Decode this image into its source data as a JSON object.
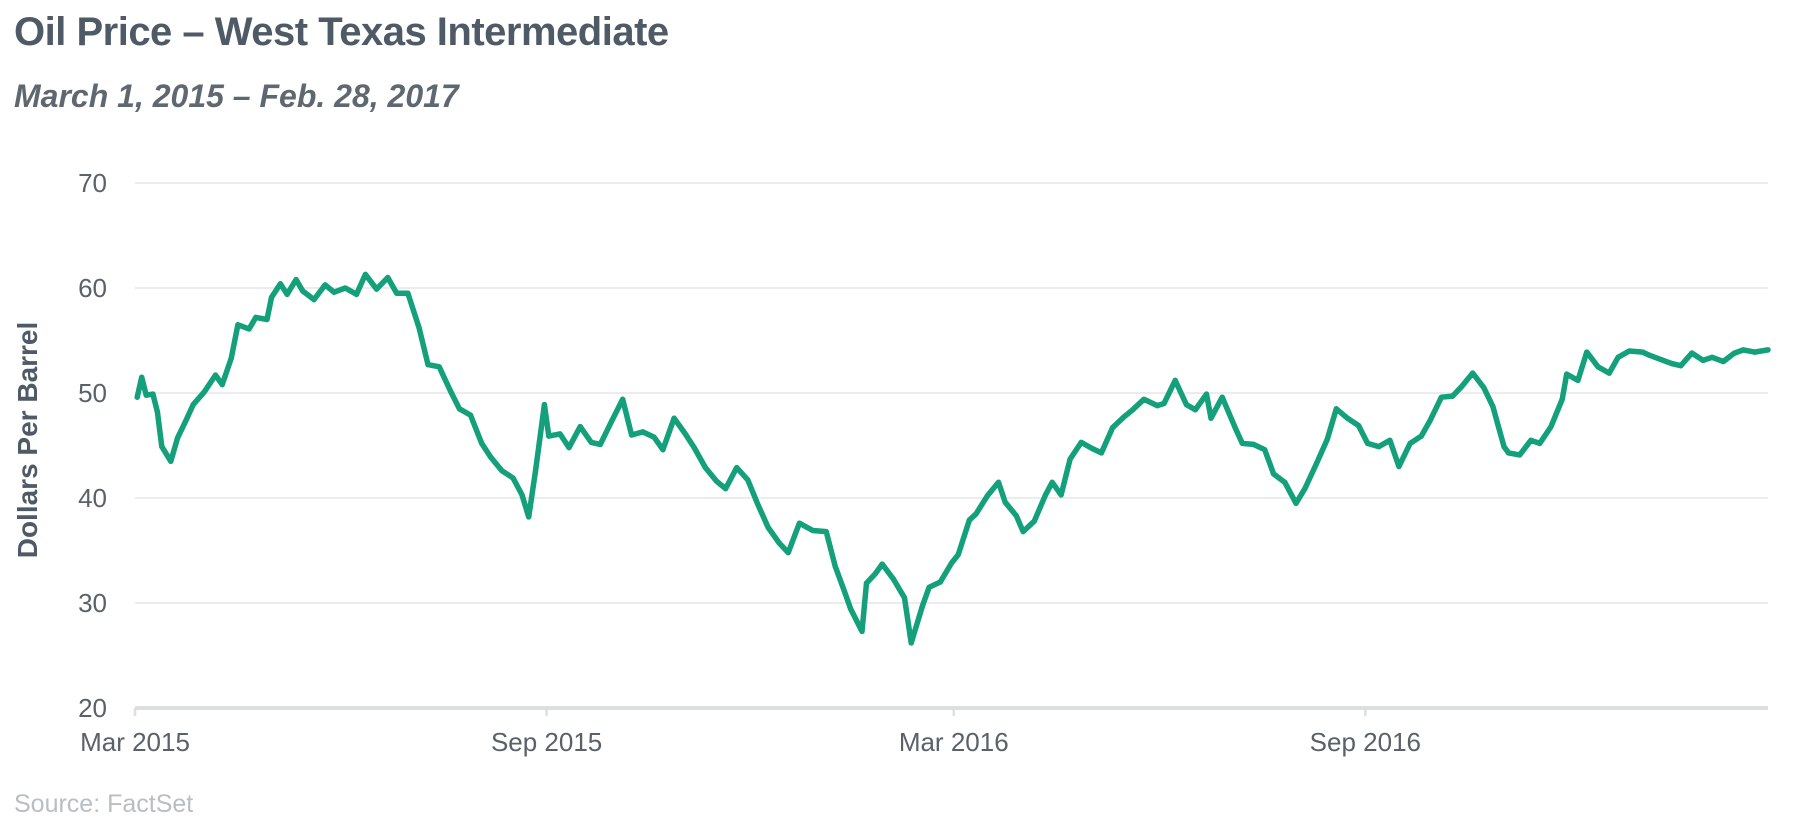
{
  "header": {
    "title": "Oil Price – West Texas Intermediate",
    "subtitle": "March 1, 2015 – Feb. 28, 2017"
  },
  "footer": {
    "source": "Source: FactSet"
  },
  "colors": {
    "line": "#13a07a",
    "grid": "#e3e5e7",
    "axis": "#dcdfe2",
    "text": "#5a6169",
    "title": "#4e5a65",
    "source": "#b9bec3"
  },
  "chart_data": {
    "type": "line",
    "title": "Oil Price – West Texas Intermediate",
    "subtitle": "March 1, 2015 – Feb. 28, 2017",
    "xlabel": "",
    "ylabel": "Dollars Per Barrel",
    "ylim": [
      20,
      70
    ],
    "xlim": [
      "2015-03-01",
      "2017-02-28"
    ],
    "yticks": [
      20,
      30,
      40,
      50,
      60,
      70
    ],
    "xticks": [
      {
        "date": "2015-03-01",
        "label": "Mar 2015"
      },
      {
        "date": "2015-09-01",
        "label": "Sep 2015"
      },
      {
        "date": "2016-03-01",
        "label": "Mar 2016"
      },
      {
        "date": "2016-09-01",
        "label": "Sep 2016"
      }
    ],
    "grid": true,
    "legend": "none",
    "series": [
      {
        "x": [
          "2015-03-02",
          "2015-03-04",
          "2015-03-06",
          "2015-03-09",
          "2015-03-11",
          "2015-03-13",
          "2015-03-17",
          "2015-03-20",
          "2015-03-24",
          "2015-03-27",
          "2015-04-01",
          "2015-04-06",
          "2015-04-09",
          "2015-04-13",
          "2015-04-16",
          "2015-04-21",
          "2015-04-24",
          "2015-04-29",
          "2015-05-01",
          "2015-05-05",
          "2015-05-08",
          "2015-05-12",
          "2015-05-15",
          "2015-05-20",
          "2015-05-25",
          "2015-05-29",
          "2015-06-03",
          "2015-06-08",
          "2015-06-12",
          "2015-06-17",
          "2015-06-22",
          "2015-06-26",
          "2015-07-01",
          "2015-07-06",
          "2015-07-10",
          "2015-07-15",
          "2015-07-20",
          "2015-07-24",
          "2015-07-29",
          "2015-08-03",
          "2015-08-07",
          "2015-08-12",
          "2015-08-17",
          "2015-08-21",
          "2015-08-24",
          "2015-08-27",
          "2015-08-31",
          "2015-09-02",
          "2015-09-07",
          "2015-09-11",
          "2015-09-16",
          "2015-09-21",
          "2015-09-25",
          "2015-09-30",
          "2015-10-05",
          "2015-10-09",
          "2015-10-14",
          "2015-10-19",
          "2015-10-23",
          "2015-10-28",
          "2015-11-02",
          "2015-11-06",
          "2015-11-11",
          "2015-11-16",
          "2015-11-20",
          "2015-11-25",
          "2015-11-30",
          "2015-12-04",
          "2015-12-09",
          "2015-12-14",
          "2015-12-18",
          "2015-12-23",
          "2015-12-29",
          "2016-01-04",
          "2016-01-08",
          "2016-01-12",
          "2016-01-15",
          "2016-01-20",
          "2016-01-22",
          "2016-01-26",
          "2016-01-29",
          "2016-02-03",
          "2016-02-08",
          "2016-02-11",
          "2016-02-16",
          "2016-02-19",
          "2016-02-24",
          "2016-02-29",
          "2016-03-03",
          "2016-03-08",
          "2016-03-11",
          "2016-03-16",
          "2016-03-21",
          "2016-03-24",
          "2016-03-29",
          "2016-04-01",
          "2016-04-06",
          "2016-04-11",
          "2016-04-14",
          "2016-04-18",
          "2016-04-22",
          "2016-04-27",
          "2016-05-02",
          "2016-05-06",
          "2016-05-11",
          "2016-05-16",
          "2016-05-20",
          "2016-05-25",
          "2016-05-31",
          "2016-06-03",
          "2016-06-08",
          "2016-06-13",
          "2016-06-17",
          "2016-06-22",
          "2016-06-24",
          "2016-06-29",
          "2016-07-05",
          "2016-07-08",
          "2016-07-13",
          "2016-07-18",
          "2016-07-22",
          "2016-07-27",
          "2016-08-01",
          "2016-08-05",
          "2016-08-10",
          "2016-08-15",
          "2016-08-19",
          "2016-08-24",
          "2016-08-29",
          "2016-09-02",
          "2016-09-07",
          "2016-09-12",
          "2016-09-16",
          "2016-09-21",
          "2016-09-26",
          "2016-09-30",
          "2016-10-05",
          "2016-10-10",
          "2016-10-14",
          "2016-10-19",
          "2016-10-24",
          "2016-10-28",
          "2016-11-02",
          "2016-11-04",
          "2016-11-09",
          "2016-11-14",
          "2016-11-18",
          "2016-11-23",
          "2016-11-28",
          "2016-11-30",
          "2016-12-05",
          "2016-12-09",
          "2016-12-14",
          "2016-12-19",
          "2016-12-23",
          "2016-12-28",
          "2017-01-03",
          "2017-01-06",
          "2017-01-11",
          "2017-01-16",
          "2017-01-20",
          "2017-01-25",
          "2017-01-30",
          "2017-02-03",
          "2017-02-08",
          "2017-02-13",
          "2017-02-17",
          "2017-02-22",
          "2017-02-28"
        ],
        "values": [
          49.6,
          51.5,
          49.8,
          49.9,
          48.2,
          44.9,
          43.5,
          45.7,
          47.5,
          48.9,
          50.1,
          51.7,
          50.8,
          53.3,
          56.5,
          56.1,
          57.2,
          57.0,
          59.1,
          60.4,
          59.4,
          60.8,
          59.7,
          58.9,
          60.3,
          59.6,
          60.0,
          59.4,
          61.3,
          59.9,
          61.0,
          59.5,
          59.5,
          56.2,
          52.7,
          52.5,
          50.2,
          48.5,
          47.9,
          45.2,
          43.9,
          42.6,
          41.9,
          40.3,
          38.2,
          42.5,
          48.9,
          45.9,
          46.1,
          44.8,
          46.8,
          45.3,
          45.1,
          47.3,
          49.4,
          46.0,
          46.3,
          45.8,
          44.6,
          47.6,
          46.1,
          44.8,
          42.9,
          41.6,
          40.9,
          42.9,
          41.7,
          39.6,
          37.2,
          35.7,
          34.8,
          37.6,
          36.9,
          36.8,
          33.5,
          31.2,
          29.4,
          27.3,
          31.9,
          32.8,
          33.7,
          32.3,
          30.5,
          26.2,
          29.7,
          31.5,
          32.0,
          33.8,
          34.6,
          37.9,
          38.5,
          40.2,
          41.5,
          39.6,
          38.3,
          36.8,
          37.8,
          40.3,
          41.5,
          40.3,
          43.7,
          45.3,
          44.7,
          44.3,
          46.7,
          47.7,
          48.4,
          49.4,
          48.8,
          49.0,
          51.2,
          48.9,
          48.4,
          49.9,
          47.6,
          49.6,
          46.6,
          45.2,
          45.1,
          44.6,
          42.3,
          41.5,
          39.5,
          40.9,
          43.2,
          45.6,
          48.5,
          47.6,
          46.9,
          45.2,
          44.9,
          45.5,
          43.0,
          45.2,
          45.9,
          47.4,
          49.6,
          49.7,
          50.6,
          51.9,
          50.5,
          48.7,
          44.9,
          44.3,
          44.1,
          45.5,
          45.2,
          46.8,
          49.4,
          51.8,
          51.2,
          53.9,
          52.5,
          51.9,
          53.4,
          54.0,
          53.9,
          53.6,
          53.2,
          52.8,
          52.6,
          53.8,
          53.1,
          53.4,
          53.0,
          53.8,
          54.1,
          53.9,
          54.1
        ]
      }
    ]
  }
}
